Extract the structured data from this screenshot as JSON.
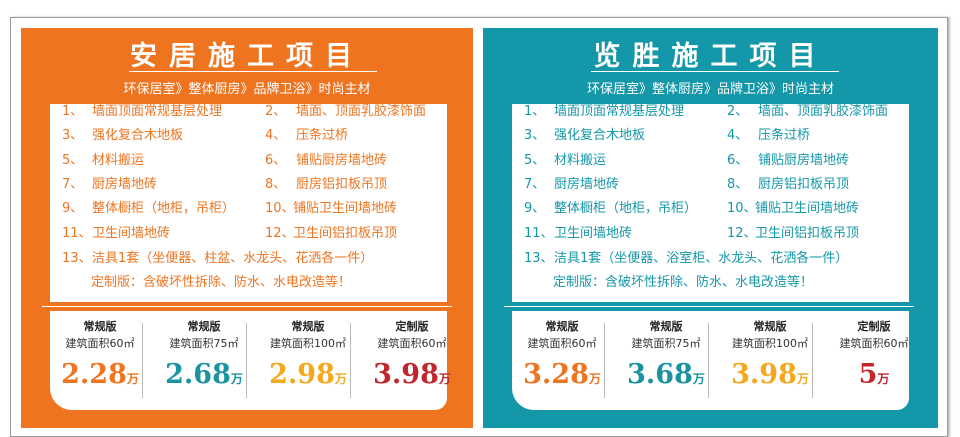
{
  "colors": {
    "orange": "#EE7420",
    "teal": "#1497A8",
    "price_orange": "#EE7420",
    "price_teal": "#1A93A1",
    "price_yellow": "#F5A81C",
    "price_red": "#C0272D"
  },
  "panels": [
    {
      "title": "安居施工项目",
      "subtitle": "环保居室》整体厨房》品牌卫浴》时尚主材",
      "items": [
        {
          "num": "1、",
          "text": "墙面顶面常规基层处理"
        },
        {
          "num": "2、",
          "text": "墙面、顶面乳胶漆饰面"
        },
        {
          "num": "3、",
          "text": "强化复合木地板"
        },
        {
          "num": "4、",
          "text": "压条过桥"
        },
        {
          "num": "5、",
          "text": "材料搬运"
        },
        {
          "num": "6、",
          "text": "铺贴厨房墙地砖"
        },
        {
          "num": "7、",
          "text": "厨房墙地砖"
        },
        {
          "num": "8、",
          "text": "厨房铝扣板吊顶"
        },
        {
          "num": "9、",
          "text": "整体橱柜（地柜，吊柜）"
        },
        {
          "num": "10、",
          "text": "铺贴卫生间墙地砖"
        },
        {
          "num": "11、",
          "text": "卫生间墙地砖"
        },
        {
          "num": "12、",
          "text": "卫生间铝扣板吊顶"
        },
        {
          "num": "13、",
          "text": "洁具1套（坐便器、柱盆、水龙头、花洒各一件）"
        }
      ],
      "note": "定制版：含破坏性拆除、防水、水电改造等！",
      "prices": [
        {
          "type": "常规版",
          "area": "建筑面积60㎡",
          "price": "2.28",
          "unit": "万"
        },
        {
          "type": "常规版",
          "area": "建筑面积75㎡",
          "price": "2.68",
          "unit": "万"
        },
        {
          "type": "常规版",
          "area": "建筑面积100㎡",
          "price": "2.98",
          "unit": "万"
        },
        {
          "type": "定制版",
          "area": "建筑面积60㎡",
          "price": "3.98",
          "unit": "万"
        }
      ]
    },
    {
      "title": "览胜施工项目",
      "subtitle": "环保居室》整体厨房》品牌卫浴》时尚主材",
      "items": [
        {
          "num": "1、",
          "text": "墙面顶面常规基层处理"
        },
        {
          "num": "2、",
          "text": "墙面、顶面乳胶漆饰面"
        },
        {
          "num": "3、",
          "text": "强化复合木地板"
        },
        {
          "num": "4、",
          "text": "压条过桥"
        },
        {
          "num": "5、",
          "text": "材料搬运"
        },
        {
          "num": "6、",
          "text": "铺贴厨房墙地砖"
        },
        {
          "num": "7、",
          "text": "厨房墙地砖"
        },
        {
          "num": "8、",
          "text": "厨房铝扣板吊顶"
        },
        {
          "num": "9、",
          "text": "整体橱柜（地柜，吊柜）"
        },
        {
          "num": "10、",
          "text": "铺贴卫生间墙地砖"
        },
        {
          "num": "11、",
          "text": "卫生间墙地砖"
        },
        {
          "num": "12、",
          "text": "卫生间铝扣板吊顶"
        },
        {
          "num": "13、",
          "text": "洁具1套（坐便器、浴室柜、水龙头、花洒各一件）"
        }
      ],
      "note": "定制版：含破坏性拆除、防水、水电改造等！",
      "prices": [
        {
          "type": "常规版",
          "area": "建筑面积60㎡",
          "price": "3.28",
          "unit": "万"
        },
        {
          "type": "常规版",
          "area": "建筑面积75㎡",
          "price": "3.68",
          "unit": "万"
        },
        {
          "type": "常规版",
          "area": "建筑面积100㎡",
          "price": "3.98",
          "unit": "万"
        },
        {
          "type": "定制版",
          "area": "建筑面积60㎡",
          "price": "5",
          "unit": "万"
        }
      ]
    }
  ]
}
